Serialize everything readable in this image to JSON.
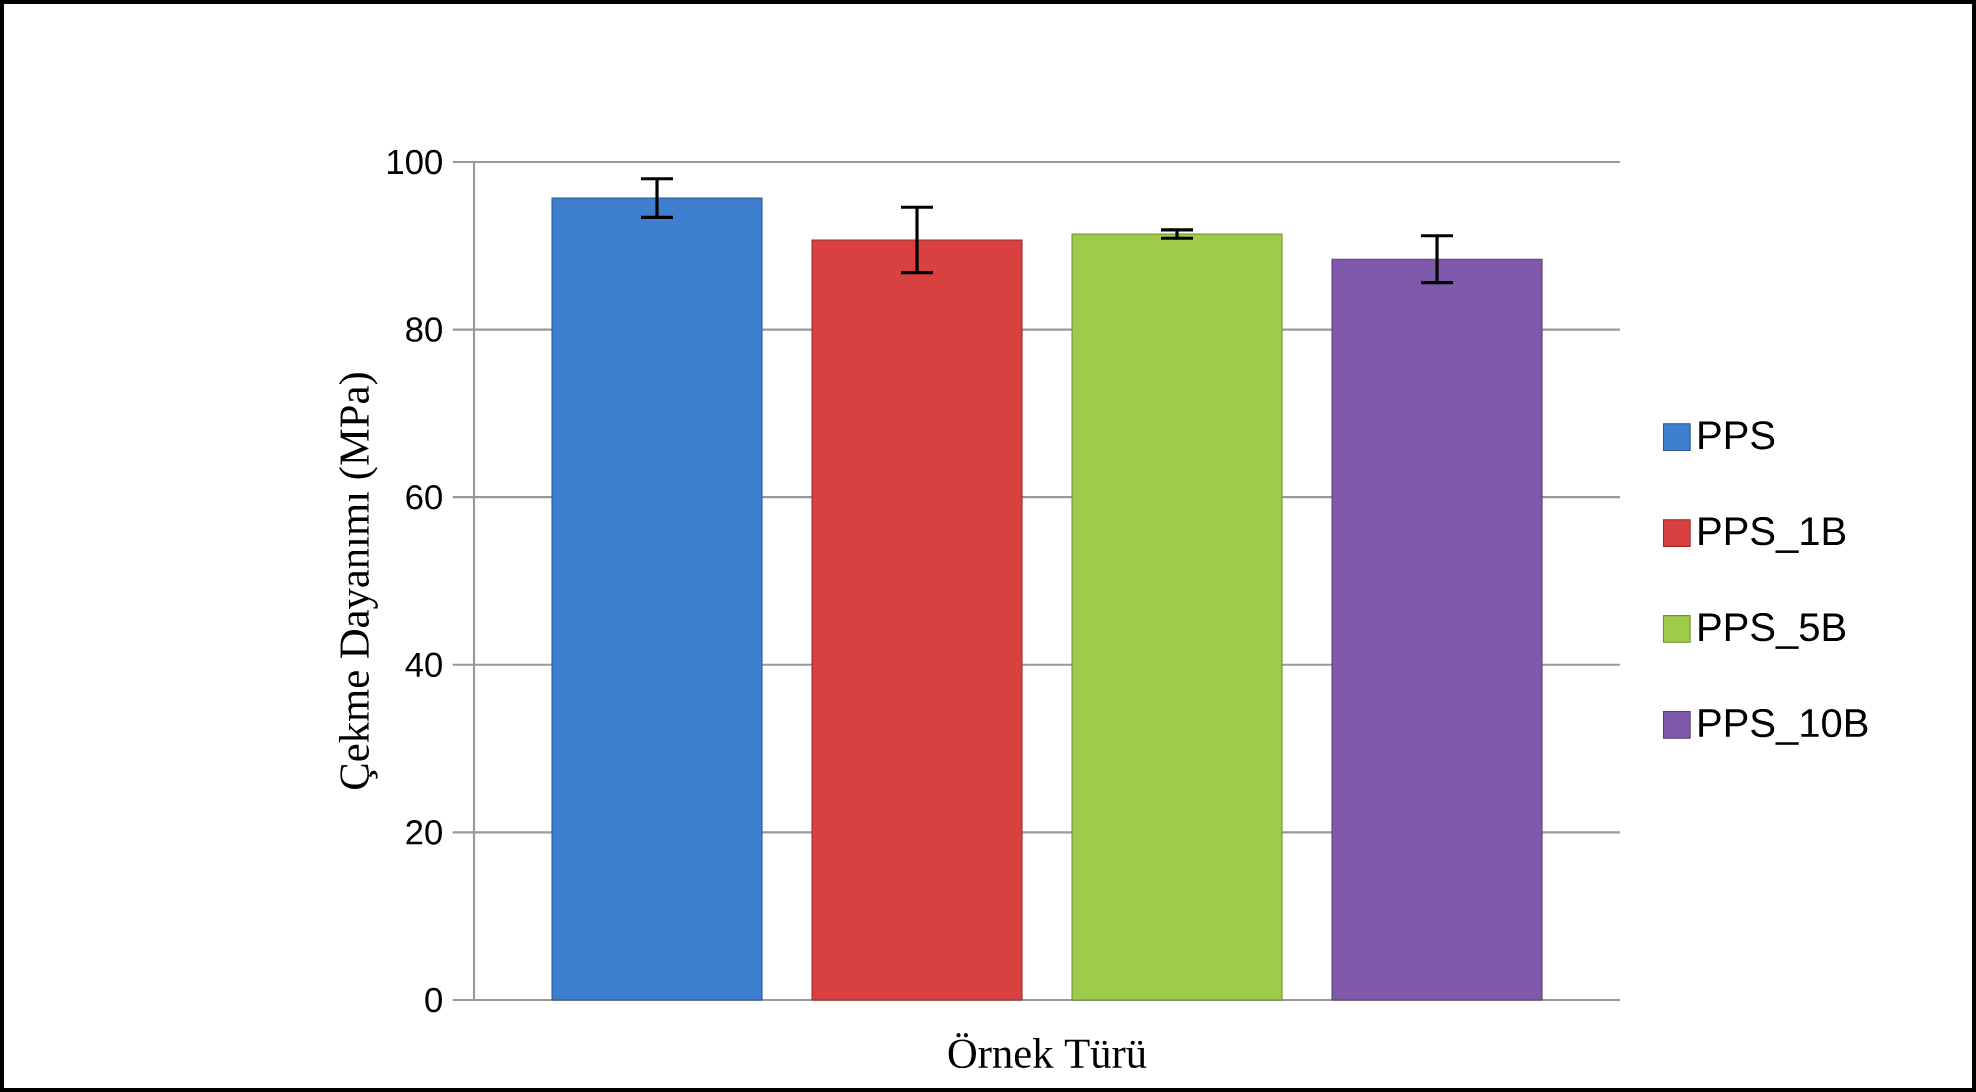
{
  "chart_data": {
    "type": "bar",
    "xlabel": "Örnek Türü",
    "ylabel": "Çekme Dayanımı (MPa)",
    "categories": [
      null
    ],
    "series": [
      {
        "name": "PPS",
        "color": "#3f7fcf",
        "values": [
          95.7
        ],
        "errors": [
          2.3
        ]
      },
      {
        "name": "PPS_1B",
        "color": "#d94040",
        "values": [
          90.7
        ],
        "errors": [
          3.9
        ]
      },
      {
        "name": "PPS_5B",
        "color": "#9fcb4a",
        "values": [
          91.4
        ],
        "errors": [
          0.5
        ]
      },
      {
        "name": "PPS_10B",
        "color": "#7f5aab",
        "values": [
          88.4
        ],
        "errors": [
          2.8
        ]
      }
    ],
    "ylim": [
      0,
      100
    ],
    "yticks": [
      0,
      20,
      40,
      60,
      80,
      100
    ],
    "grid": "y",
    "legend": "right"
  }
}
